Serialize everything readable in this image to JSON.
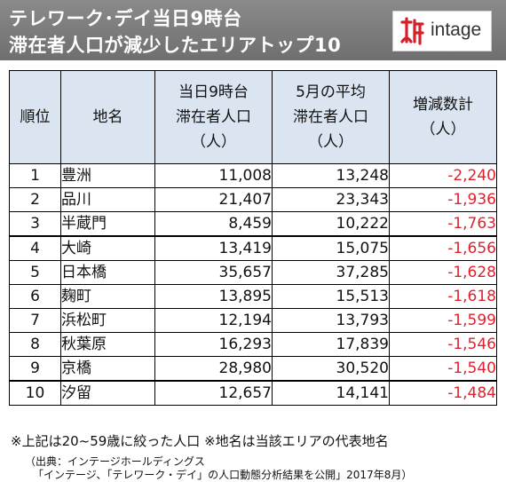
{
  "header": {
    "title_line1": "テレワーク･デイ当日9時台",
    "title_line2": "滞在者人口が減少したエリアトップ10",
    "logo_text": "intage"
  },
  "table": {
    "headers": [
      {
        "line1": "順位",
        "line2": "",
        "line3": ""
      },
      {
        "line1": "地名",
        "line2": "",
        "line3": ""
      },
      {
        "line1": "当日9時台",
        "line2": "滞在者人口",
        "line3": "（人）"
      },
      {
        "line1": "5月の平均",
        "line2": "滞在者人口",
        "line3": "（人）"
      },
      {
        "line1": "増減数計",
        "line2": "（人）",
        "line3": ""
      }
    ],
    "rows": [
      {
        "rank": "1",
        "area": "豊洲",
        "day": "11,008",
        "may": "13,248",
        "diff": "-2,240"
      },
      {
        "rank": "2",
        "area": "品川",
        "day": "21,407",
        "may": "23,343",
        "diff": "-1,936"
      },
      {
        "rank": "3",
        "area": "半蔵門",
        "day": "8,459",
        "may": "10,222",
        "diff": "-1,763"
      },
      {
        "rank": "4",
        "area": "大崎",
        "day": "13,419",
        "may": "15,075",
        "diff": "-1,656"
      },
      {
        "rank": "5",
        "area": "日本橋",
        "day": "35,657",
        "may": "37,285",
        "diff": "-1,628"
      },
      {
        "rank": "6",
        "area": "麹町",
        "day": "13,895",
        "may": "15,513",
        "diff": "-1,618"
      },
      {
        "rank": "7",
        "area": "浜松町",
        "day": "12,194",
        "may": "13,793",
        "diff": "-1,599"
      },
      {
        "rank": "8",
        "area": "秋葉原",
        "day": "16,293",
        "may": "17,839",
        "diff": "-1,546"
      },
      {
        "rank": "9",
        "area": "京橋",
        "day": "28,980",
        "may": "30,520",
        "diff": "-1,540"
      },
      {
        "rank": "10",
        "area": "汐留",
        "day": "12,657",
        "may": "14,141",
        "diff": "-1,484"
      }
    ]
  },
  "note": "※上記は20~59歳に絞った人口 ※地名は当該エリアの代表地名",
  "source_line1": "（出典：インテージホールディングス",
  "source_line2": "「インテージ、「テレワーク・デイ」の人口動態分析結果を公開」2017年8月）",
  "colors": {
    "header_bg": "#7d7d7d",
    "table_header_bg": "#dbe5f1",
    "negative": "#e0212f",
    "logo_red": "#d4202a"
  }
}
